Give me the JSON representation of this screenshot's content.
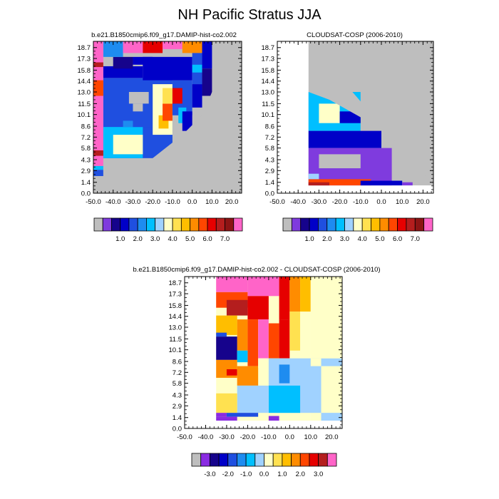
{
  "page": {
    "title": "NH Pacific Stratus JJA"
  },
  "colors": {
    "missing": "#bebebe",
    "abs_scale": [
      "#7f3bde",
      "#16038c",
      "#0000c8",
      "#1f4fe0",
      "#1e8cf0",
      "#00bfff",
      "#a0d2ff",
      "#ffffc8",
      "#ffe150",
      "#ffbe00",
      "#ff8c00",
      "#ff4600",
      "#e60000",
      "#b41e1e",
      "#8c1414",
      "#ff64c8"
    ],
    "diff_scale": [
      "#8a2be2",
      "#16038c",
      "#0000c8",
      "#1f4fe0",
      "#1e8cf0",
      "#00bfff",
      "#a0d2ff",
      "#ffffc8",
      "#ffe150",
      "#ffbe00",
      "#ff8c00",
      "#ff4600",
      "#e60000",
      "#b41e1e",
      "#ff64c8"
    ]
  },
  "chart_data": [
    {
      "type": "heatmap",
      "title": "b.e21.B1850cmip6.f09_g17.DAMIP-hist-co2.002",
      "x_ticks": [
        "-50.0",
        "-40.0",
        "-30.0",
        "-20.0",
        "-10.0",
        "0.0",
        "10.0",
        "20.0"
      ],
      "y_ticks": [
        "0.0",
        "1.4",
        "2.9",
        "4.3",
        "5.8",
        "7.2",
        "8.6",
        "10.1",
        "11.5",
        "13.0",
        "14.4",
        "15.8",
        "17.3",
        "18.7"
      ],
      "xlim": [
        -50,
        25
      ],
      "ylim": [
        0,
        19.5
      ],
      "grid": false,
      "colorbar_labels": [
        "1.0",
        "2.0",
        "3.0",
        "4.0",
        "5.0",
        "6.0",
        "7.0"
      ],
      "regions": [
        {
          "x0": -50,
          "x1": 25,
          "y0": 0,
          "y1": 19.5,
          "v": "M"
        },
        {
          "x0": -50,
          "x1": 0,
          "y0": 0,
          "y1": 2.2,
          "v": "M"
        },
        {
          "x0": -45,
          "x1": -10,
          "y0": 4.5,
          "y1": 14.8,
          "v": 1.5
        },
        {
          "x0": -45,
          "x1": -25,
          "y0": 4.5,
          "y1": 8.5,
          "v": 2.5
        },
        {
          "x0": -40,
          "x1": -25,
          "y0": 5.0,
          "y1": 7.5,
          "v": 3.5
        },
        {
          "x0": -35,
          "x1": -30,
          "y0": 8.5,
          "y1": 9.3,
          "v": 2.2
        },
        {
          "x0": -30,
          "x1": -20,
          "y0": 8.5,
          "y1": 13.5,
          "v": 1.8
        },
        {
          "x0": -32,
          "x1": -22,
          "y0": 11.5,
          "y1": 13.0,
          "v": "M"
        },
        {
          "x0": -30,
          "x1": -25,
          "y0": 10.5,
          "y1": 11.5,
          "v": "M"
        },
        {
          "x0": -20,
          "x1": -10,
          "y0": 7.5,
          "y1": 14.0,
          "v": 3.5
        },
        {
          "x0": -17,
          "x1": -12,
          "y0": 8.3,
          "y1": 10.0,
          "v": 4.5
        },
        {
          "x0": -15,
          "x1": -10,
          "y0": 9.3,
          "y1": 11.5,
          "v": 5.6
        },
        {
          "x0": -15,
          "x1": -10,
          "y0": 11.5,
          "y1": 13.5,
          "v": 4.4
        },
        {
          "x0": -10,
          "x1": 0,
          "y0": 10.0,
          "y1": 14.5,
          "v": 1.7
        },
        {
          "x0": -10,
          "x1": -5,
          "y0": 11.5,
          "y1": 13.5,
          "v": 6.2
        },
        {
          "x0": -7,
          "x1": -3,
          "y0": 9.0,
          "y1": 11.0,
          "v": 2.6
        },
        {
          "x0": -45,
          "x1": -25,
          "y0": 14.8,
          "y1": 16.3,
          "v": 1.2
        },
        {
          "x0": -25,
          "x1": 0,
          "y0": 14.5,
          "y1": 17.5,
          "v": 1.0
        },
        {
          "x0": -40,
          "x1": -30,
          "y0": 16.0,
          "y1": 17.5,
          "v": 0.5
        },
        {
          "x0": -30,
          "x1": -20,
          "y0": 16.5,
          "y1": 17.5,
          "v": 1.3
        },
        {
          "x0": -45,
          "x1": -35,
          "y0": 17.5,
          "y1": 19.5,
          "v": 2.0
        },
        {
          "x0": -35,
          "x1": -25,
          "y0": 18.0,
          "y1": 19.5,
          "v": 7.5
        },
        {
          "x0": -25,
          "x1": -15,
          "y0": 18.0,
          "y1": 19.5,
          "v": 6.3
        },
        {
          "x0": -15,
          "x1": -5,
          "y0": 18.5,
          "y1": 19.5,
          "v": 7.5
        },
        {
          "x0": -5,
          "x1": 5,
          "y0": 18.0,
          "y1": 19.5,
          "v": 5.0
        },
        {
          "x0": 0,
          "x1": 5,
          "y0": 14.0,
          "y1": 18.0,
          "v": 1.5
        },
        {
          "x0": 0,
          "x1": 5,
          "y0": 15.5,
          "y1": 16.5,
          "v": 2.5
        },
        {
          "x0": 5,
          "x1": 10,
          "y0": 16.0,
          "y1": 19.5,
          "v": 1.0
        },
        {
          "x0": 5,
          "x1": 10,
          "y0": 12.5,
          "y1": 16.0,
          "v": 0.8
        },
        {
          "x0": 0,
          "x1": 5,
          "y0": 11.0,
          "y1": 14.0,
          "v": 1.0
        },
        {
          "x0": -5,
          "x1": 0,
          "y0": 8.0,
          "y1": 10.5,
          "v": 1.0
        },
        {
          "x0": -50,
          "x1": -45,
          "y0": 3.0,
          "y1": 3.5,
          "v": 2.5
        },
        {
          "x0": -50,
          "x1": -45,
          "y0": 2.2,
          "y1": 3.0,
          "v": 1.8
        },
        {
          "x0": -50,
          "x1": -45,
          "y0": 3.5,
          "y1": 19.5,
          "v": 7.5
        },
        {
          "x0": -50,
          "x1": -45,
          "y0": 4.8,
          "y1": 5.5,
          "v": 6.5
        },
        {
          "x0": -50,
          "x1": -45,
          "y0": 12.5,
          "y1": 14.5,
          "v": 5.5
        },
        {
          "x0": -50,
          "x1": -45,
          "y0": 16.2,
          "y1": 16.8,
          "v": 6.5
        }
      ],
      "diagonal_mask": [
        [
          -45,
          2.2
        ],
        [
          -20,
          4.5
        ],
        [
          -5,
          7.5
        ],
        [
          5,
          10.0
        ],
        [
          10,
          13.0
        ],
        [
          15,
          14.0
        ]
      ]
    },
    {
      "type": "heatmap",
      "title": "CLOUDSAT-COSP (2006-2010)",
      "x_ticks": [
        "-50.0",
        "-40.0",
        "-30.0",
        "-20.0",
        "-10.0",
        "0.0",
        "10.0",
        "20.0"
      ],
      "y_ticks": [
        "0.0",
        "1.4",
        "2.9",
        "4.3",
        "5.8",
        "7.2",
        "8.6",
        "10.1",
        "11.5",
        "13.0",
        "14.4",
        "15.8",
        "17.3",
        "18.7"
      ],
      "xlim": [
        -50,
        25
      ],
      "ylim": [
        0,
        19.5
      ],
      "grid": false,
      "colorbar_labels": [
        "1.0",
        "2.0",
        "3.0",
        "4.0",
        "5.0",
        "6.0",
        "7.0"
      ],
      "regions": [
        {
          "x0": -35,
          "x1": 25,
          "y0": 1.0,
          "y1": 19.5,
          "v": "M"
        },
        {
          "x0": -35,
          "x1": -10,
          "y0": 8.0,
          "y1": 13.0,
          "v": 2.5
        },
        {
          "x0": -30,
          "x1": -20,
          "y0": 9.0,
          "y1": 11.5,
          "v": 3.5
        },
        {
          "x0": -20,
          "x1": -10,
          "y0": 9.0,
          "y1": 10.5,
          "v": 1.0
        },
        {
          "x0": -35,
          "x1": 0,
          "y0": 5.8,
          "y1": 8.0,
          "v": 1.0
        },
        {
          "x0": -35,
          "x1": 5,
          "y0": 1.0,
          "y1": 5.8,
          "v": 0.4
        },
        {
          "x0": -30,
          "x1": -10,
          "y0": 3.2,
          "y1": 5.0,
          "v": "M"
        },
        {
          "x0": -35,
          "x1": -5,
          "y0": 1.0,
          "y1": 1.8,
          "v": 5.5
        },
        {
          "x0": -35,
          "x1": -25,
          "y0": 1.0,
          "y1": 1.4,
          "v": 6.5
        },
        {
          "x0": -10,
          "x1": 10,
          "y0": 1.0,
          "y1": 1.6,
          "v": 1.0
        },
        {
          "x0": 10,
          "x1": 15,
          "y0": 1.0,
          "y1": 1.4,
          "v": 0.4
        },
        {
          "x0": -35,
          "x1": -30,
          "y0": 1.8,
          "y1": 2.5,
          "v": 3.0
        }
      ],
      "diagonal_mask": [
        [
          -35,
          13.0
        ],
        [
          -25,
          12.0
        ],
        [
          -15,
          10.5
        ],
        [
          -5,
          9.0
        ],
        [
          5,
          7.0
        ],
        [
          15,
          5.0
        ],
        [
          20,
          2.5
        ],
        [
          25,
          1.0
        ]
      ]
    },
    {
      "type": "heatmap",
      "title": "b.e21.B1850cmip6.f09_g17.DAMIP-hist-co2.002 - CLOUDSAT-COSP (2006-2010)",
      "x_ticks": [
        "-50.0",
        "-40.0",
        "-30.0",
        "-20.0",
        "-10.0",
        "0.0",
        "10.0",
        "20.0"
      ],
      "y_ticks": [
        "0.0",
        "1.4",
        "2.9",
        "4.3",
        "5.8",
        "7.2",
        "8.6",
        "10.1",
        "11.5",
        "13.0",
        "14.4",
        "15.8",
        "17.3",
        "18.7"
      ],
      "xlim": [
        -50,
        25
      ],
      "ylim": [
        0,
        19.5
      ],
      "grid": false,
      "colorbar_labels": [
        "-3.0",
        "-2.0",
        "-1.0",
        "0.0",
        "1.0",
        "2.0",
        "3.0"
      ],
      "regions": [
        {
          "x0": 10,
          "x1": 25,
          "y0": 1.0,
          "y1": 19.5,
          "v": 0.2
        },
        {
          "x0": -35,
          "x1": 10,
          "y0": 1.0,
          "y1": 19.5,
          "v": 0.2
        },
        {
          "x0": -35,
          "x1": -20,
          "y0": 17.5,
          "y1": 19.5,
          "v": 3.8
        },
        {
          "x0": -35,
          "x1": -20,
          "y0": 15.5,
          "y1": 17.5,
          "v": 2.2
        },
        {
          "x0": -30,
          "x1": -20,
          "y0": 14.5,
          "y1": 16.5,
          "v": 3.0
        },
        {
          "x0": -20,
          "x1": -5,
          "y0": 17.0,
          "y1": 19.5,
          "v": 3.8
        },
        {
          "x0": -20,
          "x1": -10,
          "y0": 14.0,
          "y1": 17.0,
          "v": 2.6
        },
        {
          "x0": -5,
          "x1": 0,
          "y0": 14.0,
          "y1": 19.5,
          "v": 2.8
        },
        {
          "x0": 0,
          "x1": 5,
          "y0": 15.0,
          "y1": 19.5,
          "v": 1.5
        },
        {
          "x0": 5,
          "x1": 10,
          "y0": 15.0,
          "y1": 19.5,
          "v": 1.0
        },
        {
          "x0": -35,
          "x1": -25,
          "y0": 12.0,
          "y1": 14.5,
          "v": 1.3
        },
        {
          "x0": -25,
          "x1": -20,
          "y0": 10.0,
          "y1": 14.0,
          "v": 1.6
        },
        {
          "x0": -20,
          "x1": -15,
          "y0": 8.0,
          "y1": 14.0,
          "v": 2.2
        },
        {
          "x0": -15,
          "x1": -10,
          "y0": 9.0,
          "y1": 14.0,
          "v": 3.8
        },
        {
          "x0": -10,
          "x1": -5,
          "y0": 9.0,
          "y1": 13.5,
          "v": 2.0
        },
        {
          "x0": -5,
          "x1": 0,
          "y0": 9.0,
          "y1": 14.0,
          "v": 2.7
        },
        {
          "x0": 0,
          "x1": 5,
          "y0": 10.0,
          "y1": 15.0,
          "v": 0.7
        },
        {
          "x0": 5,
          "x1": 10,
          "y0": 9.5,
          "y1": 15.0,
          "v": 0.2
        },
        {
          "x0": -35,
          "x1": -25,
          "y0": 8.8,
          "y1": 11.8,
          "v": -3.0
        },
        {
          "x0": -35,
          "x1": -30,
          "y0": 11.8,
          "y1": 12.3,
          "v": -2.0
        },
        {
          "x0": -25,
          "x1": -20,
          "y0": 8.5,
          "y1": 10.0,
          "v": -1.0
        },
        {
          "x0": -35,
          "x1": -25,
          "y0": 6.5,
          "y1": 8.8,
          "v": 1.5
        },
        {
          "x0": -30,
          "x1": -25,
          "y0": 6.8,
          "y1": 7.6,
          "v": 2.6
        },
        {
          "x0": -25,
          "x1": -15,
          "y0": 5.5,
          "y1": 8.0,
          "v": 1.5
        },
        {
          "x0": -15,
          "x1": -10,
          "y0": 7.8,
          "y1": 9.0,
          "v": 0.3
        },
        {
          "x0": -10,
          "x1": 25,
          "y0": 2.0,
          "y1": 9.0,
          "v": -0.5
        },
        {
          "x0": -5,
          "x1": 0,
          "y0": 5.8,
          "y1": 8.2,
          "v": -1.2
        },
        {
          "x0": -10,
          "x1": 5,
          "y0": 2.0,
          "y1": 5.5,
          "v": -0.8
        },
        {
          "x0": -25,
          "x1": -10,
          "y0": 2.0,
          "y1": 5.5,
          "v": -0.5
        },
        {
          "x0": 10,
          "x1": 25,
          "y0": 9.0,
          "y1": 19.5,
          "v": 0.2
        },
        {
          "x0": 15,
          "x1": 25,
          "y0": 2.0,
          "y1": 8.0,
          "v": 0.2
        },
        {
          "x0": 10,
          "x1": 15,
          "y0": 8.0,
          "y1": 9.0,
          "v": 0.2
        },
        {
          "x0": -35,
          "x1": -25,
          "y0": 2.0,
          "y1": 4.5,
          "v": 0.8
        },
        {
          "x0": -35,
          "x1": -30,
          "y0": 1.5,
          "y1": 2.0,
          "v": -3.5
        },
        {
          "x0": -30,
          "x1": -15,
          "y0": 1.5,
          "y1": 2.0,
          "v": -2.0
        },
        {
          "x0": -35,
          "x1": -25,
          "y0": 1.0,
          "y1": 1.5,
          "v": -4.0
        },
        {
          "x0": -10,
          "x1": -5,
          "y0": 1.0,
          "y1": 1.6,
          "v": -3.5
        },
        {
          "x0": 15,
          "x1": 25,
          "y0": 1.0,
          "y1": 2.0,
          "v": -0.5
        }
      ],
      "diagonal_mask": []
    }
  ]
}
